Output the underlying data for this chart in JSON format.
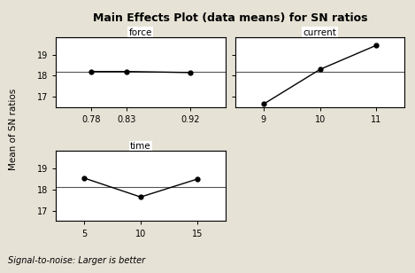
{
  "title": "Main Effects Plot (data means) for SN ratios",
  "ylabel": "Mean of SN ratios",
  "footnote": "Signal-to-noise: Larger is better",
  "bg_color": "#e6e2d5",
  "panel_bg": "#ffffff",
  "subplots": [
    {
      "label": "force",
      "x": [
        0.78,
        0.83,
        0.92
      ],
      "y": [
        18.2,
        18.2,
        18.15
      ],
      "xlim": [
        0.73,
        0.97
      ],
      "xticks": [
        0.78,
        0.83,
        0.92
      ],
      "xtick_labels": [
        "0.78",
        "0.83",
        "0.92"
      ],
      "ylim": [
        16.5,
        19.85
      ],
      "yticks": [
        17,
        18,
        19
      ],
      "ref_y": 18.18,
      "row": 0,
      "col": 0
    },
    {
      "label": "current",
      "x": [
        9,
        10,
        11
      ],
      "y": [
        16.65,
        18.3,
        19.45
      ],
      "xlim": [
        8.5,
        11.5
      ],
      "xticks": [
        9,
        10,
        11
      ],
      "xtick_labels": [
        "9",
        "10",
        "11"
      ],
      "ylim": [
        16.5,
        19.85
      ],
      "yticks": [
        17,
        18,
        19
      ],
      "ref_y": 18.18,
      "row": 0,
      "col": 1
    },
    {
      "label": "time",
      "x": [
        5,
        10,
        15
      ],
      "y": [
        18.55,
        17.65,
        18.5
      ],
      "xlim": [
        2.5,
        17.5
      ],
      "xticks": [
        5,
        10,
        15
      ],
      "xtick_labels": [
        "5",
        "10",
        "15"
      ],
      "ylim": [
        16.5,
        19.85
      ],
      "yticks": [
        17,
        18,
        19
      ],
      "ref_y": 18.13,
      "row": 1,
      "col": 0
    }
  ]
}
